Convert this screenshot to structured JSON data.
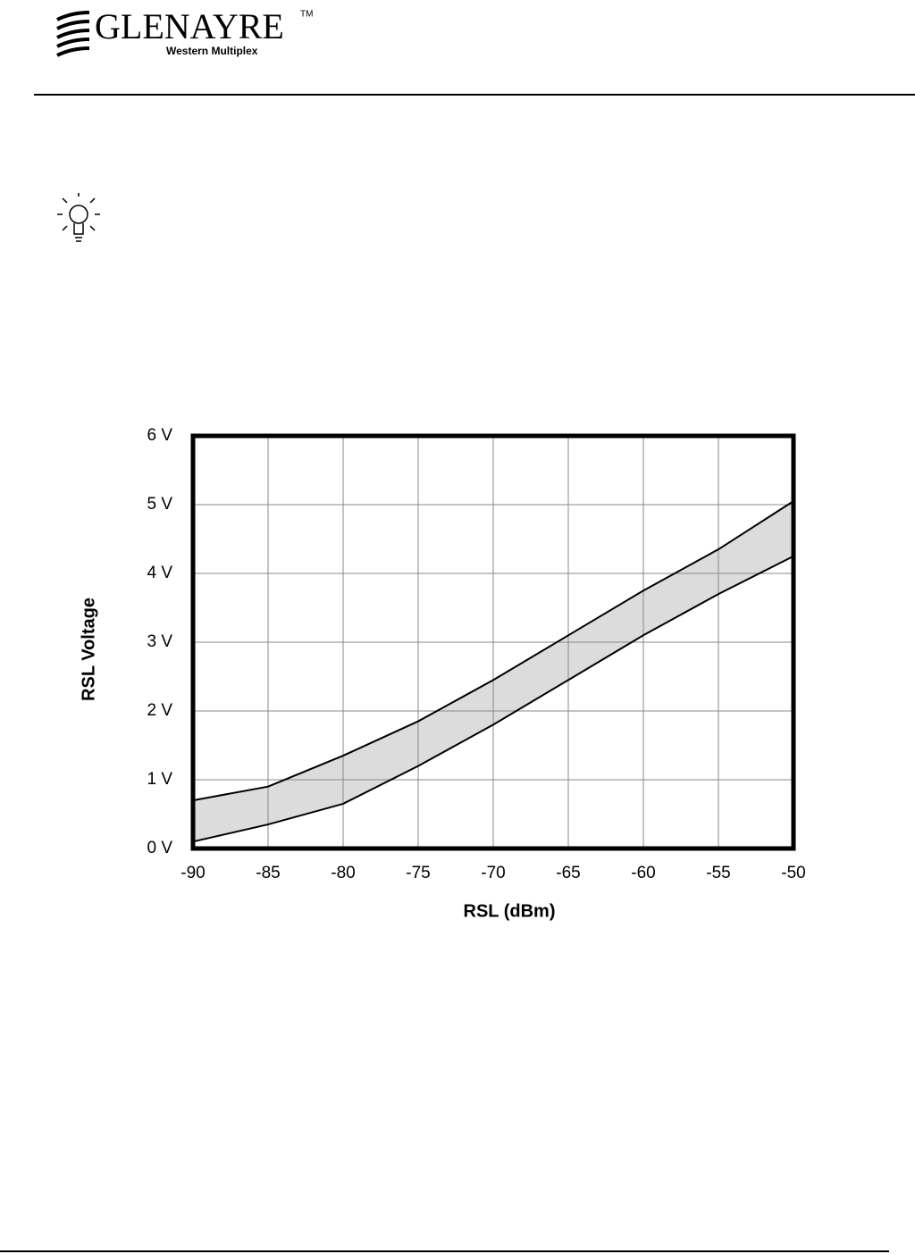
{
  "header": {
    "brand": "GLENAYRE",
    "trademark": "TM",
    "subtitle": "Western Multiplex"
  },
  "chart_data": {
    "type": "band",
    "xlabel": "RSL (dBm)",
    "ylabel": "RSL Voltage",
    "x": [
      -90,
      -85,
      -80,
      -75,
      -70,
      -65,
      -60,
      -55,
      -50
    ],
    "series": [
      {
        "color": "#000000",
        "values": [
          0.7,
          0.9,
          1.35,
          1.85,
          2.45,
          3.1,
          3.75,
          4.35,
          5.05
        ]
      },
      {
        "color": "#000000",
        "values": [
          0.1,
          0.35,
          0.65,
          1.2,
          1.8,
          2.45,
          3.1,
          3.7,
          4.25
        ]
      }
    ],
    "band_color": "#dcdcdc",
    "xlim": [
      -90,
      -50
    ],
    "xticks": [
      -90,
      -85,
      -80,
      -75,
      -70,
      -65,
      -60,
      -55,
      -50
    ],
    "ylim": [
      0,
      6
    ],
    "yticks": [
      {
        "value": 0,
        "label": "0 V"
      },
      {
        "value": 1,
        "label": "1 V"
      },
      {
        "value": 2,
        "label": "2 V"
      },
      {
        "value": 3,
        "label": "3 V"
      },
      {
        "value": 4,
        "label": "4 V"
      },
      {
        "value": 5,
        "label": "5 V"
      },
      {
        "value": 6,
        "label": "6 V"
      }
    ],
    "grid": true
  }
}
